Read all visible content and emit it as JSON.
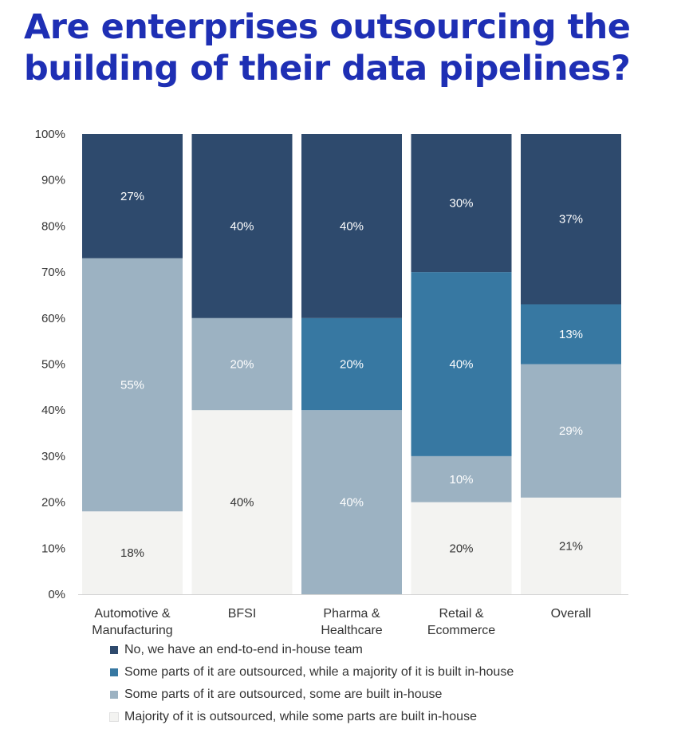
{
  "title": {
    "line1": "Are enterprises outsourcing the",
    "line2": "building of their data pipelines?"
  },
  "colors": {
    "no_inhouse": "#2e4a6d",
    "some_majority": "#3778a2",
    "some_some": "#9cb2c2",
    "majority_out": "#f3f3f1",
    "label_dark_bg": "#ffffff",
    "label_light_bg": "#333333"
  },
  "chart_data": {
    "type": "bar",
    "stacked": true,
    "percent_stacked": true,
    "categories": [
      [
        "Automotive &",
        "Manufacturing"
      ],
      [
        "BFSI"
      ],
      [
        "Pharma &",
        "Healthcare"
      ],
      [
        "Retail &",
        "Ecommerce"
      ],
      [
        "Overall"
      ]
    ],
    "y_ticks": [
      "0%",
      "10%",
      "20%",
      "30%",
      "40%",
      "50%",
      "60%",
      "70%",
      "80%",
      "90%",
      "100%"
    ],
    "ylim": [
      0,
      100
    ],
    "grid": false,
    "legend_position": "bottom",
    "series": [
      {
        "key": "majority_out",
        "name": "Majority of it is outsourced, while some parts are built in-house",
        "values": [
          18,
          40,
          0,
          20,
          21
        ],
        "labels": [
          "18%",
          "40%",
          "",
          "20%",
          "21%"
        ]
      },
      {
        "key": "some_some",
        "name": "Some parts of it are outsourced, some are built in-house",
        "values": [
          55,
          20,
          40,
          10,
          29
        ],
        "labels": [
          "55%",
          "20%",
          "40%",
          "10%",
          "29%"
        ]
      },
      {
        "key": "some_majority",
        "name": "Some parts of it are outsourced, while a majority of it is built in-house",
        "values": [
          0,
          0,
          20,
          40,
          13
        ],
        "labels": [
          "",
          "",
          "20%",
          "40%",
          "13%"
        ]
      },
      {
        "key": "no_inhouse",
        "name": "No, we have an end-to-end in-house team",
        "values": [
          27,
          40,
          40,
          30,
          37
        ],
        "labels": [
          "27%",
          "40%",
          "40%",
          "30%",
          "37%"
        ]
      }
    ]
  },
  "legend": [
    {
      "key": "no_inhouse",
      "label": "No, we have an end-to-end in-house team"
    },
    {
      "key": "some_majority",
      "label": "Some parts of it are outsourced, while a majority of it is built in-house"
    },
    {
      "key": "some_some",
      "label": "Some parts of it are outsourced, some are built in-house"
    },
    {
      "key": "majority_out",
      "label": "Majority of it is outsourced, while some parts are built in-house"
    }
  ]
}
